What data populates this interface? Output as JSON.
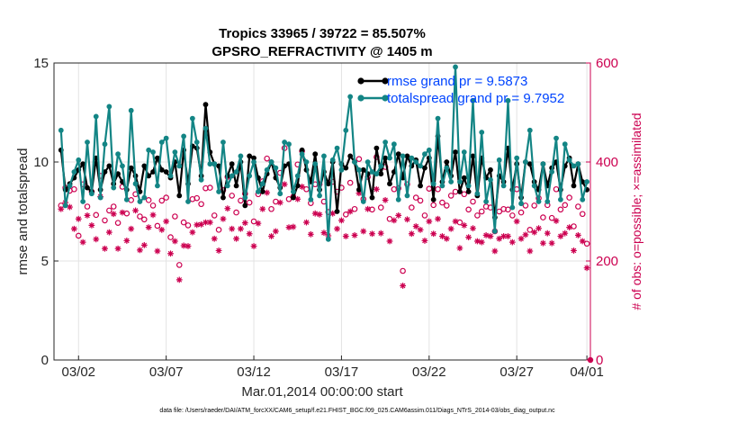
{
  "chart_data": {
    "type": "line",
    "title_line1": "Tropics 33965 / 39722 = 85.507%",
    "title_line2": "GPSRO_REFRACTIVITY @ 1405 m",
    "ylabel_left": "rmse and totalspread",
    "ylabel_right": "# of obs: o=possible; ×=assimilated",
    "xlabel": "Mar.01,2014 00:00:00 start",
    "footnote": "data file: /Users/raeder/DAI/ATM_forcXX/CAM6_setup/f.e21.FHIST_BGC.f09_025.CAM6assim.011/Diags_NTrS_2014-03/obs_diag_output.nc",
    "ylim_left": [
      0,
      15
    ],
    "ylim_right": [
      0,
      600
    ],
    "xlim": [
      0.6,
      31.2
    ],
    "left_ticks": [
      0,
      5,
      10,
      15
    ],
    "right_ticks": [
      0,
      200,
      400,
      600
    ],
    "x_ticks": [
      {
        "x": 2,
        "label": "03/02"
      },
      {
        "x": 7,
        "label": "03/07"
      },
      {
        "x": 12,
        "label": "03/12"
      },
      {
        "x": 17,
        "label": "03/17"
      },
      {
        "x": 22,
        "label": "03/22"
      },
      {
        "x": 27,
        "label": "03/27"
      },
      {
        "x": 31,
        "label": "04/01"
      }
    ],
    "legend": [
      {
        "name": "rmse grand pr = 9.5873",
        "color": "#000000"
      },
      {
        "name": "totalspread grand pr = 9.7952",
        "color": "#138585"
      }
    ],
    "x": [
      1.0,
      1.25,
      1.5,
      1.75,
      2.0,
      2.25,
      2.5,
      2.75,
      3.0,
      3.25,
      3.5,
      3.75,
      4.0,
      4.25,
      4.5,
      4.75,
      5.0,
      5.25,
      5.5,
      5.75,
      6.0,
      6.25,
      6.5,
      6.75,
      7.0,
      7.25,
      7.5,
      7.75,
      8.0,
      8.25,
      8.5,
      8.75,
      9.0,
      9.25,
      9.5,
      9.75,
      10.0,
      10.25,
      10.5,
      10.75,
      11.0,
      11.25,
      11.5,
      11.75,
      12.0,
      12.25,
      12.5,
      12.75,
      13.0,
      13.25,
      13.5,
      13.75,
      14.0,
      14.25,
      14.5,
      14.75,
      15.0,
      15.25,
      15.5,
      15.75,
      16.0,
      16.25,
      16.5,
      16.75,
      17.0,
      17.25,
      17.5,
      17.75,
      18.0,
      18.25,
      18.5,
      18.75,
      19.0,
      19.25,
      19.5,
      19.75,
      20.0,
      20.25,
      20.5,
      20.75,
      21.0,
      21.25,
      21.5,
      21.75,
      22.0,
      22.25,
      22.5,
      22.75,
      23.0,
      23.25,
      23.5,
      23.75,
      24.0,
      24.25,
      24.5,
      24.75,
      25.0,
      25.25,
      25.5,
      25.75,
      26.0,
      26.25,
      26.5,
      26.75,
      27.0,
      27.25,
      27.5,
      27.75,
      28.0,
      28.25,
      28.5,
      28.75,
      29.0,
      29.25,
      29.5,
      29.75,
      30.0,
      30.25,
      30.5,
      30.75,
      31.0
    ],
    "series": [
      {
        "name": "rmse",
        "color": "#000000",
        "axis": "left",
        "values": [
          10.6,
          8.6,
          8.9,
          9.2,
          9.6,
          9.9,
          8.7,
          8.5,
          10.2,
          8.6,
          9.5,
          9.8,
          8.9,
          9.4,
          9.0,
          8.6,
          9.7,
          9.3,
          8.5,
          9.8,
          9.3,
          9.5,
          10.2,
          9.6,
          9.5,
          9.2,
          10.0,
          8.3,
          10.6,
          8.9,
          10.8,
          10.7,
          9.3,
          12.9,
          10.5,
          9.9,
          9.8,
          8.2,
          9.3,
          9.9,
          8.8,
          10.0,
          7.8,
          10.3,
          10.2,
          9.2,
          8.5,
          9.4,
          10.0,
          9.2,
          8.7,
          9.8,
          9.9,
          8.2,
          8.8,
          10.6,
          9.6,
          9.0,
          10.4,
          8.6,
          9.5,
          8.9,
          10.0,
          7.5,
          9.9,
          9.7,
          10.3,
          10.0,
          8.6,
          9.6,
          9.4,
          8.2,
          10.7,
          9.4,
          10.2,
          8.9,
          9.5,
          10.4,
          9.2,
          10.3,
          9.8,
          10.1,
          8.8,
          9.7,
          10.2,
          8.1,
          11.3,
          9.0,
          10.0,
          9.3,
          10.5,
          8.5,
          9.2,
          8.5,
          10.3,
          8.3,
          10.2,
          9.2,
          9.6,
          7.2,
          9.3,
          9.0,
          10.7,
          8.6,
          9.9,
          8.2,
          10.0,
          9.9,
          9.0,
          8.6,
          9.9,
          8.8,
          9.7,
          10.0,
          8.6,
          9.8,
          10.2,
          8.8,
          9.9,
          9.0,
          8.6
        ]
      },
      {
        "name": "totalspread",
        "color": "#138585",
        "axis": "left",
        "values": [
          11.6,
          7.8,
          8.8,
          9.5,
          10.1,
          8.0,
          11.0,
          8.4,
          12.3,
          8.2,
          10.9,
          12.8,
          8.7,
          10.4,
          9.8,
          8.1,
          12.6,
          8.9,
          8.0,
          8.2,
          10.6,
          10.5,
          8.8,
          11.0,
          11.2,
          9.3,
          10.5,
          9.8,
          11.3,
          8.0,
          12.2,
          11.0,
          9.1,
          11.7,
          9.9,
          9.9,
          8.5,
          11.0,
          8.8,
          9.3,
          9.5,
          10.3,
          8.2,
          9.3,
          10.0,
          8.5,
          8.9,
          9.6,
          10.0,
          9.7,
          8.4,
          11.0,
          10.9,
          8.5,
          9.3,
          10.4,
          10.0,
          8.1,
          9.9,
          8.3,
          10.3,
          6.1,
          10.1,
          10.7,
          9.6,
          11.6,
          13.3,
          10.0,
          9.6,
          8.0,
          10.0,
          9.5,
          9.4,
          9.8,
          11.0,
          10.2,
          10.9,
          8.1,
          10.3,
          8.3,
          10.2,
          10.0,
          9.8,
          10.4,
          10.6,
          8.9,
          12.2,
          8.8,
          9.7,
          9.0,
          14.8,
          9.0,
          10.5,
          8.8,
          13.1,
          8.4,
          11.5,
          8.0,
          9.1,
          6.5,
          10.1,
          8.8,
          13.1,
          7.7,
          10.2,
          7.9,
          10.0,
          11.6,
          8.8,
          8.0,
          9.9,
          8.0,
          9.5,
          11.2,
          8.1,
          10.9,
          10.1,
          9.8,
          9.9,
          8.1,
          9.0
        ]
      },
      {
        "name": "possible",
        "color": "#cc0050",
        "axis": "right",
        "marker": "o",
        "values": [
          312,
          348,
          342,
          345,
          251,
          355,
          310,
          340,
          293,
          372,
          282,
          302,
          310,
          277,
          350,
          296,
          323,
          335,
          290,
          284,
          323,
          312,
          271,
          322,
          328,
          248,
          290,
          192,
          278,
          272,
          325,
          327,
          315,
          347,
          348,
          292,
          263,
          343,
          370,
          332,
          298,
          322,
          336,
          318,
          280,
          335,
          361,
          407,
          305,
          320,
          378,
          428,
          325,
          330,
          395,
          422,
          345,
          317,
          355,
          355,
          320,
          299,
          360,
          340,
          348,
          294,
          358,
          305,
          406,
          325,
          370,
          304,
          410,
          308,
          390,
          285,
          345,
          347,
          180,
          355,
          308,
          328,
          322,
          292,
          346,
          313,
          345,
          318,
          312,
          332,
          340,
          278,
          335,
          304,
          320,
          292,
          300,
          310,
          308,
          260,
          300,
          305,
          304,
          292,
          345,
          298,
          312,
          263,
          312,
          327,
          288,
          313,
          287,
          345,
          304,
          313,
          328,
          270,
          310,
          295,
          235
        ]
      },
      {
        "name": "assimilated",
        "color": "#cc0050",
        "axis": "right",
        "marker": "x",
        "values": [
          305,
          318,
          309,
          265,
          285,
          238,
          292,
          272,
          244,
          330,
          225,
          258,
          295,
          225,
          298,
          241,
          265,
          302,
          222,
          232,
          268,
          293,
          220,
          263,
          280,
          215,
          240,
          162,
          231,
          230,
          258,
          273,
          274,
          278,
          278,
          245,
          221,
          285,
          306,
          265,
          245,
          265,
          277,
          255,
          230,
          276,
          305,
          338,
          250,
          260,
          318,
          355,
          268,
          269,
          325,
          350,
          278,
          254,
          296,
          294,
          257,
          251,
          296,
          265,
          282,
          250,
          300,
          252,
          337,
          260,
          305,
          255,
          345,
          256,
          323,
          240,
          282,
          292,
          150,
          284,
          255,
          270,
          263,
          241,
          280,
          255,
          285,
          250,
          245,
          265,
          280,
          226,
          272,
          248,
          266,
          240,
          238,
          252,
          250,
          220,
          245,
          250,
          250,
          238,
          280,
          245,
          253,
          220,
          258,
          266,
          236,
          256,
          236,
          281,
          250,
          256,
          268,
          221,
          252,
          240,
          186
        ]
      }
    ]
  }
}
